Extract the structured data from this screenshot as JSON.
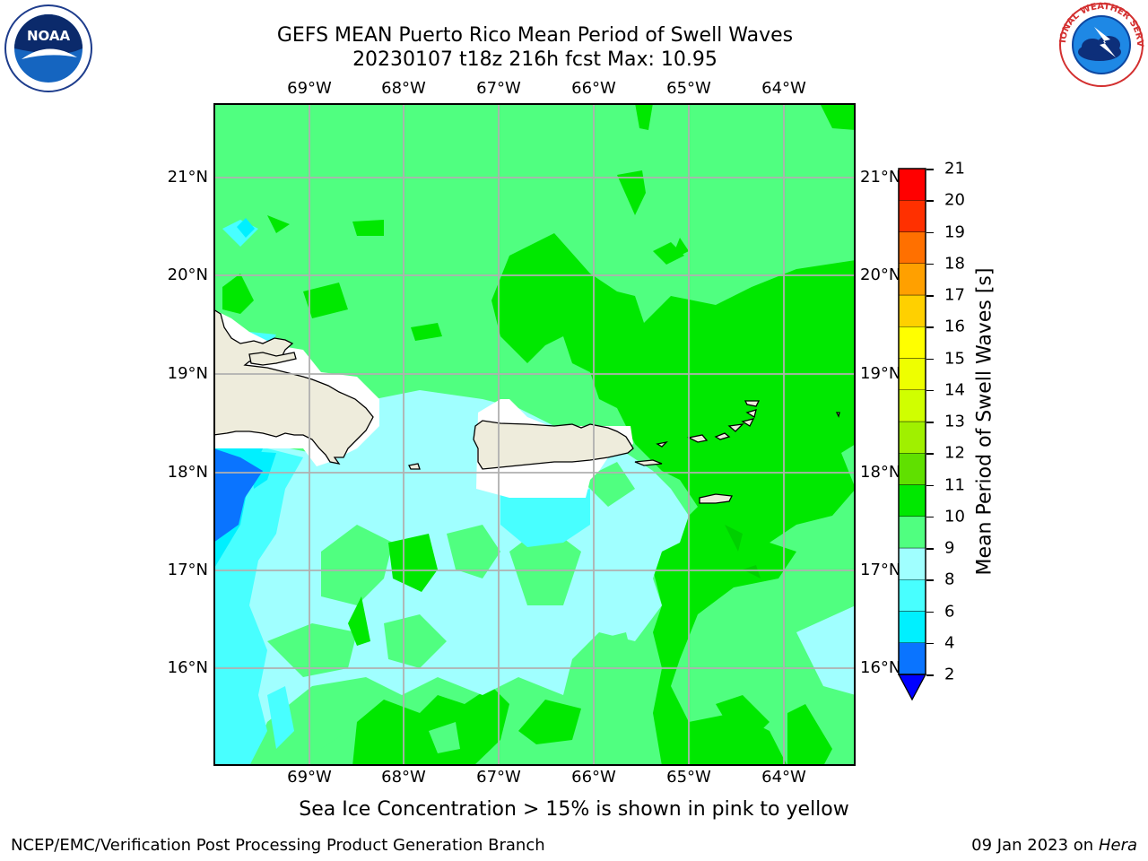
{
  "header": {
    "title_line1": "GEFS MEAN Puerto Rico Mean Period of Swell Waves",
    "title_line2": "20230107 t18z 216h fcst   Max: 10.95"
  },
  "map": {
    "lon_labels": [
      "69°W",
      "68°W",
      "67°W",
      "66°W",
      "65°W",
      "64°W"
    ],
    "lat_labels": [
      "21°N",
      "20°N",
      "19°N",
      "18°N",
      "17°N",
      "16°N"
    ],
    "land_color": "#eeecdc",
    "no_data_color": "#ffffff"
  },
  "colorbar": {
    "title": "Mean Period of Swell Waves [s]",
    "ticks": [
      "21",
      "20",
      "19",
      "18",
      "17",
      "16",
      "15",
      "14",
      "13",
      "12",
      "11",
      "10",
      "9",
      "8",
      "6",
      "4",
      "2"
    ],
    "colors": [
      "#0000ff",
      "#0a74ff",
      "#00f0ff",
      "#48ffff",
      "#a0ffff",
      "#50ff80",
      "#00e800",
      "#60e000",
      "#a0f000",
      "#d0ff00",
      "#eeff00",
      "#ffff00",
      "#ffd000",
      "#ffa000",
      "#ff7000",
      "#ff3000",
      "#ff0000"
    ]
  },
  "footer": {
    "sea_ice_note": "Sea Ice Concentration > 15% is shown in pink to yellow",
    "left": "NCEP/EMC/Verification Post Processing Product Generation Branch",
    "right_date": "09 Jan 2023 on",
    "right_machine": "Hera"
  },
  "logos": {
    "noaa_text": "NOAA",
    "nws_text": "NATIONAL WEATHER SERVICE"
  }
}
